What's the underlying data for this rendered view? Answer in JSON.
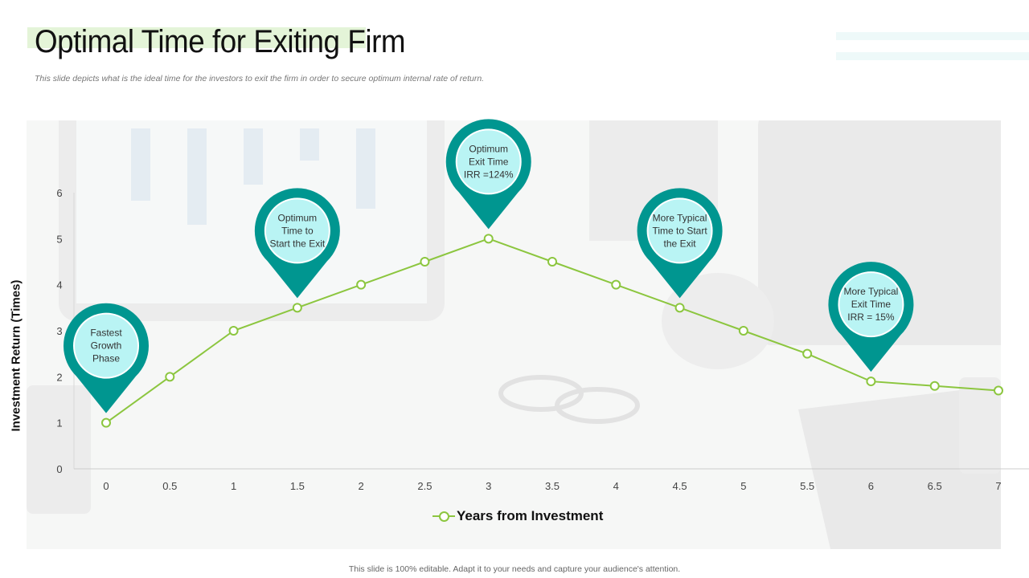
{
  "slide": {
    "title": "Optimal Time for Exiting Firm",
    "subtitle": "This slide depicts what is the ideal time for the investors to exit the firm in order to secure optimum internal rate of return.",
    "footer": "This slide is 100% editable. Adapt it to your needs and capture your audience's attention."
  },
  "colors": {
    "line": "#8cc63f",
    "pin": "#009690",
    "pin_inner": "#b9f4f4",
    "title_highlight": "#e4f4d8"
  },
  "chart_data": {
    "type": "line",
    "title": "Optimal Time for Exiting Firm",
    "xlabel": "Years from Investment",
    "ylabel": "Investment Return (Times)",
    "x_ticks": [
      "0",
      "0.5",
      "1",
      "1.5",
      "2",
      "2.5",
      "3",
      "3.5",
      "4",
      "4.5",
      "5",
      "5.5",
      "6",
      "6.5",
      "7"
    ],
    "y_ticks": [
      "0",
      "1",
      "2",
      "3",
      "4",
      "5",
      "6"
    ],
    "xlim": [
      0,
      7
    ],
    "ylim": [
      0,
      6
    ],
    "grid": false,
    "legend_position": "bottom",
    "series": [
      {
        "name": "Years from Investment",
        "x": [
          0,
          0.5,
          1,
          1.5,
          2,
          2.5,
          3,
          3.5,
          4,
          4.5,
          5,
          5.5,
          6,
          6.5,
          7
        ],
        "values": [
          1.0,
          2.0,
          3.0,
          3.5,
          4.0,
          4.5,
          5.0,
          4.5,
          4.0,
          3.5,
          3.0,
          2.5,
          1.9,
          1.8,
          1.7
        ]
      }
    ],
    "annotations": [
      {
        "x": 0,
        "y": 1.0,
        "lines": [
          "Fastest",
          "Growth",
          "Phase"
        ]
      },
      {
        "x": 1.5,
        "y": 3.5,
        "lines": [
          "Optimum",
          "Time to",
          "Start the Exit"
        ]
      },
      {
        "x": 3,
        "y": 5.0,
        "lines": [
          "Optimum",
          "Exit Time",
          "IRR =124%"
        ]
      },
      {
        "x": 4.5,
        "y": 3.5,
        "lines": [
          "More Typical",
          "Time to Start",
          "the Exit"
        ]
      },
      {
        "x": 6,
        "y": 1.9,
        "lines": [
          "More Typical",
          "Exit Time",
          "IRR = 15%"
        ]
      }
    ]
  }
}
